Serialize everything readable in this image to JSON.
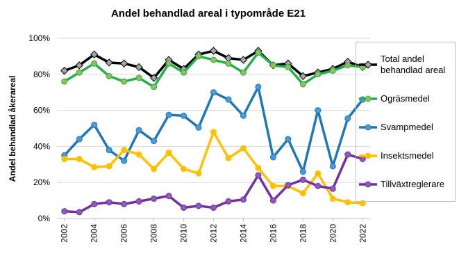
{
  "chart_data": {
    "type": "line",
    "title": "Andel behandlad areal i typområde E21",
    "y_label": "Andel behandlad åkerareal",
    "x": [
      2002,
      2003,
      2004,
      2005,
      2006,
      2007,
      2008,
      2009,
      2010,
      2011,
      2012,
      2013,
      2014,
      2015,
      2016,
      2017,
      2018,
      2019,
      2020,
      2021,
      2022
    ],
    "xlim": [
      2001.5,
      2022.5
    ],
    "xticks": [
      2002,
      2004,
      2006,
      2008,
      2010,
      2012,
      2014,
      2016,
      2018,
      2020,
      2022
    ],
    "ylim": [
      0,
      100
    ],
    "yticks": [
      {
        "value": 0,
        "label": "0%"
      },
      {
        "value": 20,
        "label": "20%"
      },
      {
        "value": 40,
        "label": "40%"
      },
      {
        "value": 60,
        "label": "60%"
      },
      {
        "value": 80,
        "label": "80%"
      },
      {
        "value": 100,
        "label": "100%"
      }
    ],
    "grid": true,
    "legend": "right",
    "series": [
      {
        "name": "Total andel behandlad areal",
        "color": "#000000",
        "marker": "diamond",
        "marker_color": "#a6a6a6",
        "values": [
          82,
          85,
          91,
          86.5,
          86,
          84,
          78,
          88,
          83,
          91,
          93,
          89,
          88,
          93,
          85,
          86,
          79,
          81,
          83,
          87,
          84
        ]
      },
      {
        "name": "Ogräsmedel",
        "color": "#22b04b",
        "marker": "circle",
        "marker_color": "#9bbb59",
        "values": [
          76,
          81,
          86,
          79,
          76,
          78,
          73,
          86,
          81,
          90,
          88,
          86,
          81,
          92,
          85,
          84,
          74.5,
          80,
          82,
          85,
          84
        ]
      },
      {
        "name": "Svampmedel",
        "color": "#1f77b4",
        "marker": "circle",
        "marker_color": "#4a9bd6",
        "values": [
          35,
          44,
          52,
          38,
          32,
          49,
          43,
          57.5,
          57,
          50.5,
          70,
          66,
          57,
          73,
          34,
          44,
          26,
          60,
          29,
          55.5,
          66
        ]
      },
      {
        "name": "Insektsmedel",
        "color": "#ffc000",
        "marker": "circle",
        "marker_color": "#ffc000",
        "values": [
          33,
          33,
          28.5,
          29,
          38,
          35.5,
          27.5,
          36.5,
          27.5,
          25,
          48,
          33.5,
          39,
          28,
          18,
          18,
          14,
          25,
          11,
          9,
          8.5
        ]
      },
      {
        "name": "Tillväxtreglerare",
        "color": "#7030a0",
        "marker": "circle",
        "marker_color": "#8e5bb5",
        "values": [
          4,
          3.5,
          8,
          9,
          8,
          9.5,
          11,
          12.5,
          6,
          7,
          6,
          9.5,
          10.5,
          24,
          10,
          18.5,
          21.5,
          18,
          16.5,
          35.5,
          33
        ]
      }
    ]
  }
}
